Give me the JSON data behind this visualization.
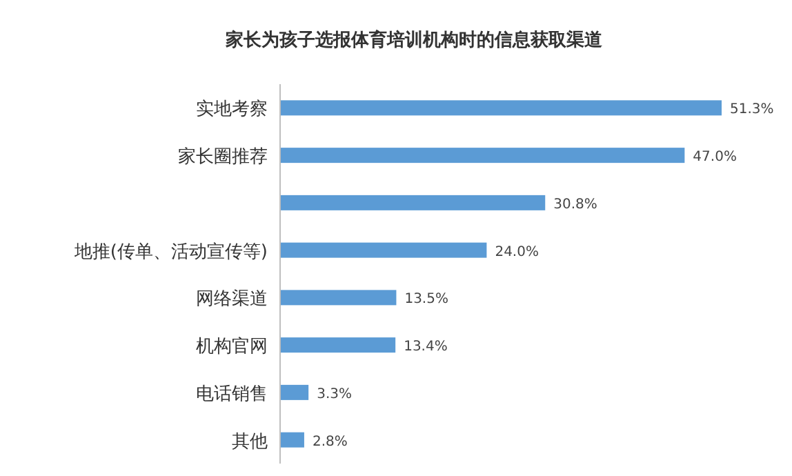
{
  "chart_data": {
    "type": "bar",
    "orientation": "horizontal",
    "title": "家长为孩子选报体育培训机构时的信息获取渠道",
    "categories": [
      "实地考察",
      "家长圈推荐",
      null,
      "地推(传单、活动宣传等)",
      "网络渠道",
      "机构官网",
      "电话销售",
      "其他"
    ],
    "values": [
      51.3,
      47.0,
      30.8,
      24.0,
      13.5,
      13.4,
      3.3,
      2.8
    ],
    "value_labels": [
      "51.3%",
      "47.0%",
      "30.8%",
      "24.0%",
      "13.5%",
      "13.4%",
      "3.3%",
      "2.8%"
    ],
    "color": "#5b9bd5"
  }
}
